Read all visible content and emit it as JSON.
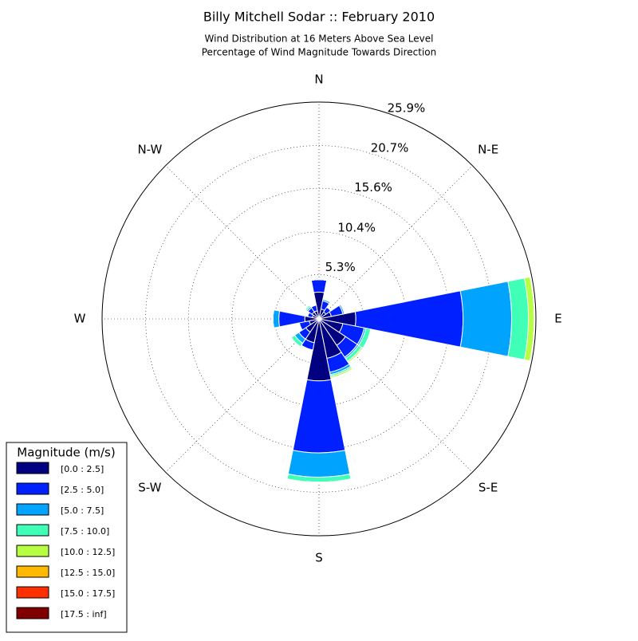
{
  "chart_data": {
    "type": "windrose",
    "title": "Billy Mitchell Sodar :: February 2010",
    "subtitle": [
      "Wind Distribution at 16 Meters Above Sea Level",
      "Percentage of Wind Magnitude Towards Direction"
    ],
    "categories": [
      "N",
      null,
      "N-E",
      null,
      "E",
      null,
      "S-E",
      null,
      "S",
      null,
      "S-W",
      null,
      "W",
      null,
      "N-W",
      null
    ],
    "rlim": [
      0,
      25.9
    ],
    "rticks": [
      {
        "value": 5.3,
        "label": "5.3%"
      },
      {
        "value": 10.4,
        "label": "10.4%"
      },
      {
        "value": 15.6,
        "label": "15.6%"
      },
      {
        "value": 20.7,
        "label": "20.7%"
      },
      {
        "value": 25.9,
        "label": "25.9%"
      }
    ],
    "grid": true,
    "legend_title": "Magnitude (m/s)",
    "legend_position": "lower left",
    "series": [
      {
        "name": "[0.0 : 2.5]",
        "color": "#000080",
        "values": [
          3.2,
          1.2,
          1.0,
          1.5,
          4.4,
          2.9,
          3.8,
          4.8,
          7.4,
          2.9,
          1.9,
          1.2,
          1.7,
          0.8,
          1.0,
          1.0
        ]
      },
      {
        "name": "[2.5 : 5.0]",
        "color": "#0020ff",
        "values": [
          1.5,
          1.0,
          0.7,
          1.4,
          12.8,
          2.6,
          1.7,
          1.7,
          8.6,
          0.9,
          1.0,
          1.2,
          3.1,
          0.6,
          0.6,
          0.7
        ]
      },
      {
        "name": "[5.0 : 7.5]",
        "color": "#00a4ff",
        "values": [
          0,
          0.2,
          0,
          0.2,
          5.8,
          0.2,
          0.2,
          0.3,
          2.9,
          0,
          0.6,
          0,
          0.7,
          0,
          0.2,
          0
        ]
      },
      {
        "name": "[7.5 : 10.0]",
        "color": "#40ffb7",
        "values": [
          0,
          0,
          0,
          0,
          2.0,
          0.6,
          0.4,
          0.2,
          0.6,
          0,
          0.5,
          0,
          0,
          0,
          0.2,
          0
        ]
      },
      {
        "name": "[10.0 : 12.5]",
        "color": "#b7ff40",
        "values": [
          0,
          0,
          0,
          0,
          0.7,
          0,
          0.2,
          0.2,
          0,
          0,
          0,
          0,
          0,
          0,
          0,
          0
        ]
      },
      {
        "name": "[12.5 : 15.0]",
        "color": "#ffb900",
        "values": [
          0,
          0,
          0,
          0,
          0,
          0,
          0,
          0,
          0,
          0,
          0,
          0,
          0,
          0,
          0,
          0
        ]
      },
      {
        "name": "[15.0 : 17.5]",
        "color": "#ff3000",
        "values": [
          0,
          0,
          0,
          0,
          0,
          0,
          0,
          0,
          0,
          0,
          0,
          0,
          0,
          0,
          0,
          0
        ]
      },
      {
        "name": "[17.5 : inf]",
        "color": "#800000",
        "values": [
          0,
          0,
          0,
          0,
          0,
          0,
          0,
          0,
          0,
          0,
          0,
          0,
          0,
          0,
          0,
          0
        ]
      }
    ]
  }
}
